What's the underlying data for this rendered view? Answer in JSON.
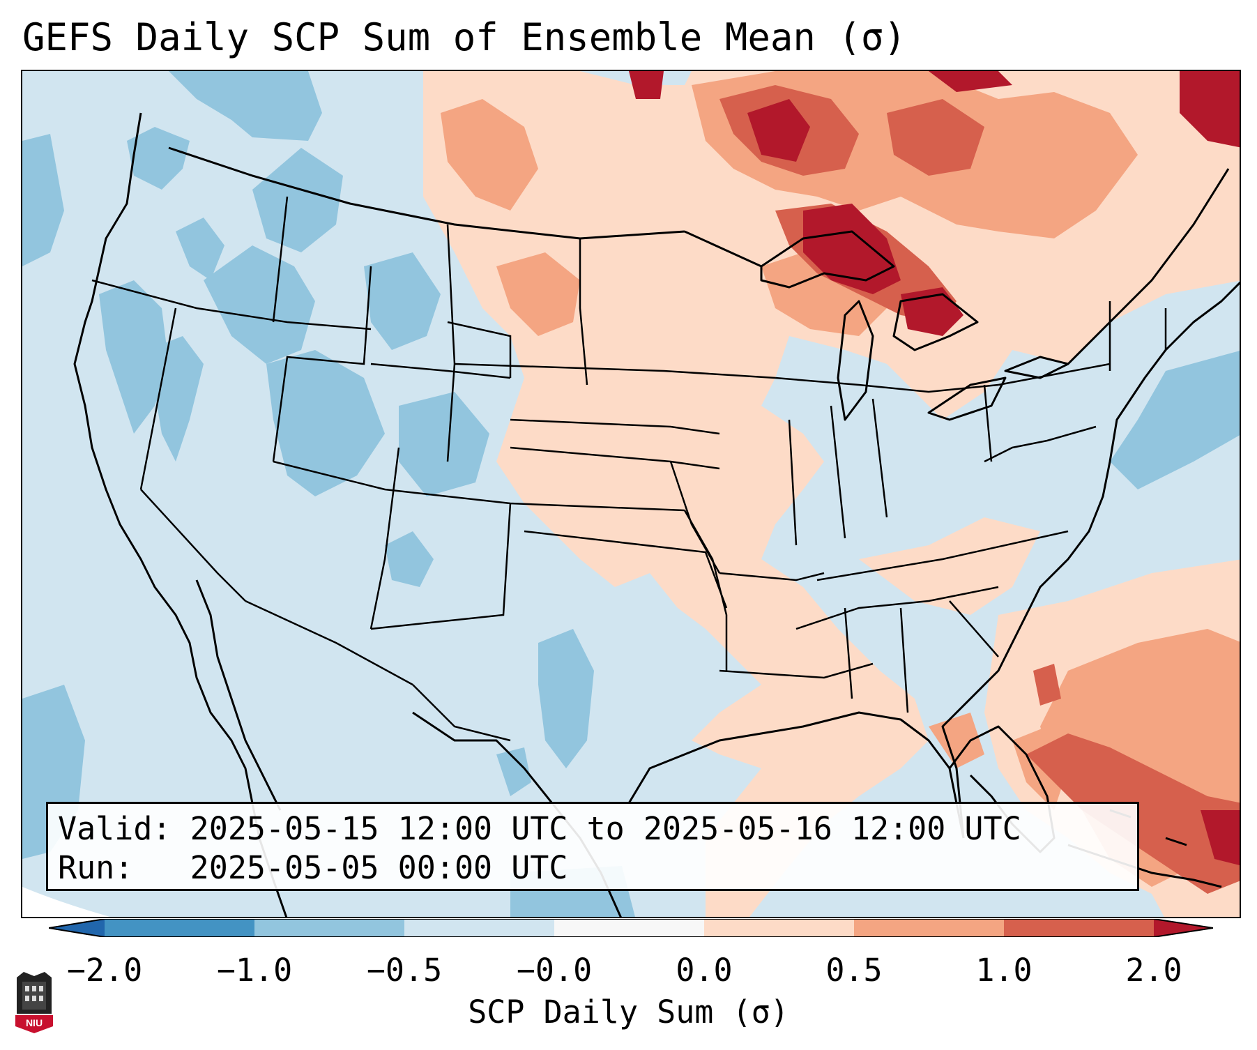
{
  "title": "GEFS Daily SCP Sum of Ensemble Mean (σ)",
  "info": {
    "valid_line": "Valid: 2025-05-15 12:00 UTC to 2025-05-16 12:00 UTC",
    "run_line": "Run:   2025-05-05 00:00 UTC"
  },
  "colorbar": {
    "label": "SCP Daily Sum (σ)",
    "ticks": [
      "−2.0",
      "−1.0",
      "−0.5",
      "−0.0",
      "0.0",
      "0.5",
      "1.0",
      "2.0"
    ],
    "colors": {
      "below_-2": "#2166ac",
      "-2_to_-1": "#4393c3",
      "-1_to_-0.5": "#92c5de",
      "-0.5_to_0": "#d1e5f0",
      "zero": "#f7f7f7",
      "0_to_0.5": "#fddbc7",
      "0.5_to_1": "#f4a582",
      "1_to_2": "#d6604d",
      "above_2": "#b2182b"
    }
  },
  "logo": {
    "text": "NIU"
  }
}
